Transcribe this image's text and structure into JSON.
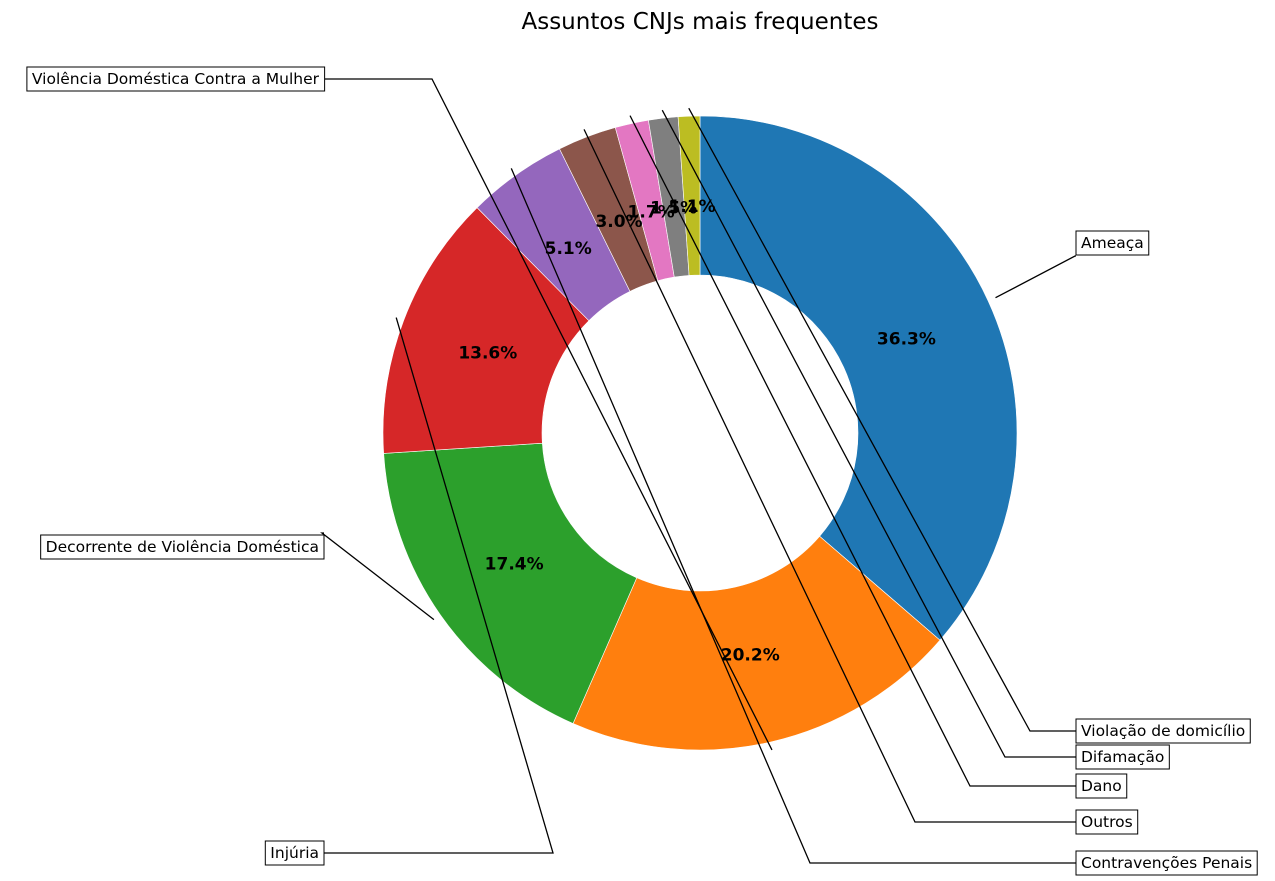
{
  "chart_data": {
    "type": "pie",
    "donut": true,
    "title": "Assuntos CNJs mais frequentes",
    "categories": [
      "Ameaça",
      "Violência Doméstica Contra a Mulher",
      "Decorrente de Violência Doméstica",
      "Injúria",
      "Contravenções Penais",
      "Outros",
      "Dano",
      "Difamação",
      "Violação de domicílio"
    ],
    "values": [
      36.3,
      20.2,
      17.4,
      13.6,
      5.1,
      3.0,
      1.7,
      1.5,
      1.1
    ],
    "value_labels": [
      "36.3%",
      "20.2%",
      "17.4%",
      "13.6%",
      "5.1%",
      "3.0%",
      "1.7%",
      "1.5%",
      "1.1%"
    ],
    "colors": [
      "#1f77b4",
      "#ff7f0e",
      "#2ca02c",
      "#d62728",
      "#9467bd",
      "#8c564b",
      "#e377c2",
      "#7f7f7f",
      "#bcbd22"
    ],
    "start_angle_deg": 90,
    "direction": "clockwise"
  }
}
